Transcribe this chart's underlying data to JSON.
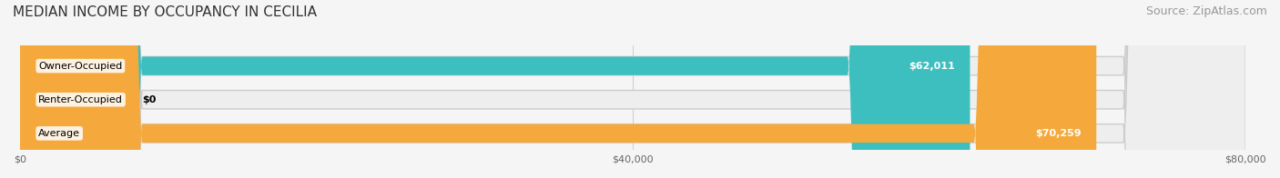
{
  "title": "MEDIAN INCOME BY OCCUPANCY IN CECILIA",
  "source": "Source: ZipAtlas.com",
  "categories": [
    "Owner-Occupied",
    "Renter-Occupied",
    "Average"
  ],
  "values": [
    62011,
    0,
    70259
  ],
  "bar_colors": [
    "#3dbfbf",
    "#b8a0c8",
    "#f5a93c"
  ],
  "label_colors": [
    "#3dbfbf",
    "#b8a0c8",
    "#f5a93c"
  ],
  "xlim": [
    0,
    80000
  ],
  "xticks": [
    0,
    40000,
    80000
  ],
  "xtick_labels": [
    "$0",
    "$40,000",
    "$80,000"
  ],
  "value_labels": [
    "$62,011",
    "$0",
    "$70,259"
  ],
  "background_color": "#f5f5f5",
  "bar_background_color": "#eeeeee",
  "title_fontsize": 11,
  "source_fontsize": 9,
  "bar_height": 0.55,
  "figsize": [
    14.06,
    1.96
  ],
  "dpi": 100
}
